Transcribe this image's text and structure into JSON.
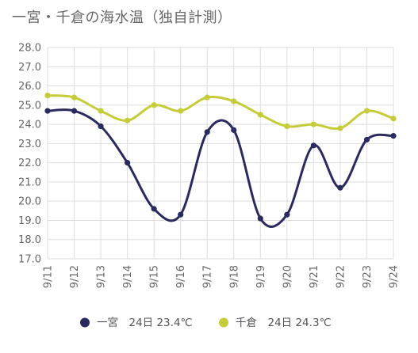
{
  "title": "一宮・千倉の海水温（独自計測）",
  "chart_data": {
    "type": "line",
    "title": "一宮・千倉の海水温（独自計測）",
    "categories": [
      "9/11",
      "9/12",
      "9/13",
      "9/14",
      "9/15",
      "9/16",
      "9/17",
      "9/18",
      "9/19",
      "9/20",
      "9/21",
      "9/22",
      "9/23",
      "9/24"
    ],
    "ylim": [
      17.0,
      28.0
    ],
    "ytick_step": 1.0,
    "yticks": [
      "17.0",
      "18.0",
      "19.0",
      "20.0",
      "21.0",
      "22.0",
      "23.0",
      "24.0",
      "25.0",
      "26.0",
      "27.0",
      "28.0"
    ],
    "grid": true,
    "legend_position": "bottom",
    "series": [
      {
        "name": "一宮",
        "legend_label": "一宮　24日 23.4℃",
        "color": "#2b2a5e",
        "values": [
          24.7,
          24.7,
          23.9,
          22.0,
          19.6,
          19.3,
          23.6,
          23.7,
          19.1,
          19.3,
          22.9,
          20.7,
          23.2,
          23.4
        ]
      },
      {
        "name": "千倉",
        "legend_label": "千倉　24日 24.3℃",
        "color": "#c5cc3a",
        "values": [
          25.5,
          25.4,
          24.7,
          24.2,
          25.0,
          24.7,
          25.4,
          25.2,
          24.5,
          23.9,
          24.0,
          23.8,
          24.7,
          24.3
        ]
      }
    ]
  }
}
